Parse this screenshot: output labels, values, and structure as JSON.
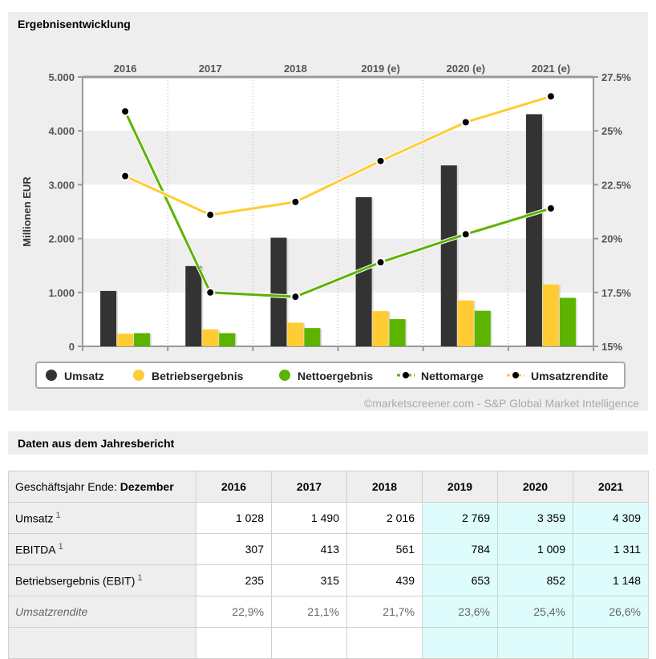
{
  "chart_data": {
    "type": "bar",
    "title": "Ergebnisentwicklung",
    "categories": [
      "2016",
      "2017",
      "2018",
      "2019 (e)",
      "2020 (e)",
      "2021 (e)"
    ],
    "ylabel": "Millionen EUR",
    "ylim": [
      0,
      5000
    ],
    "yticks": [
      "0",
      "1.000",
      "2.000",
      "3.000",
      "4.000",
      "5.000"
    ],
    "y2lim": [
      15,
      27.5
    ],
    "y2ticks": [
      "15%",
      "17.5%",
      "20%",
      "22.5%",
      "25%",
      "27.5%"
    ],
    "grid": "horizontal bands",
    "legend_position": "bottom",
    "series": [
      {
        "name": "Umsatz",
        "type": "bar",
        "axis": "left",
        "color": "#333333",
        "values": [
          1028,
          1490,
          2016,
          2769,
          3359,
          4309
        ]
      },
      {
        "name": "Betriebsergebnis",
        "type": "bar",
        "axis": "left",
        "color": "#ffcc33",
        "values": [
          235,
          315,
          439,
          653,
          852,
          1148
        ]
      },
      {
        "name": "Nettoergebnis",
        "type": "bar",
        "axis": "left",
        "color": "#5cb300",
        "values": [
          245,
          245,
          340,
          505,
          660,
          900
        ]
      },
      {
        "name": "Nettomarge",
        "type": "line",
        "axis": "right",
        "color": "#5cb300",
        "values": [
          25.9,
          17.5,
          17.3,
          18.9,
          20.2,
          21.4
        ]
      },
      {
        "name": "Umsatzrendite",
        "type": "line",
        "axis": "right",
        "color": "#ffcc33",
        "values": [
          22.9,
          21.1,
          21.7,
          23.6,
          25.4,
          26.6
        ]
      }
    ],
    "credit": "©marketscreener.com - S&P Global Market Intelligence"
  },
  "table": {
    "title": "Daten aus dem Jahresbericht",
    "header_label": "Geschäftsjahr Ende: ",
    "header_month": "Dezember",
    "years": [
      "2016",
      "2017",
      "2018",
      "2019",
      "2020",
      "2021"
    ],
    "estimate_from_index": 3,
    "rows": [
      {
        "label": "Umsatz",
        "note": "1",
        "values": [
          "1 028",
          "1 490",
          "2 016",
          "2 769",
          "3 359",
          "4 309"
        ]
      },
      {
        "label": "EBITDA",
        "note": "1",
        "values": [
          "307",
          "413",
          "561",
          "784",
          "1 009",
          "1 311"
        ]
      },
      {
        "label": "Betriebsergebnis (EBIT)",
        "note": "1",
        "values": [
          "235",
          "315",
          "439",
          "653",
          "852",
          "1 148"
        ]
      },
      {
        "label": "Umsatzrendite",
        "note": "",
        "italic": true,
        "values": [
          "22,9%",
          "21,1%",
          "21,7%",
          "23,6%",
          "25,4%",
          "26,6%"
        ]
      }
    ]
  }
}
